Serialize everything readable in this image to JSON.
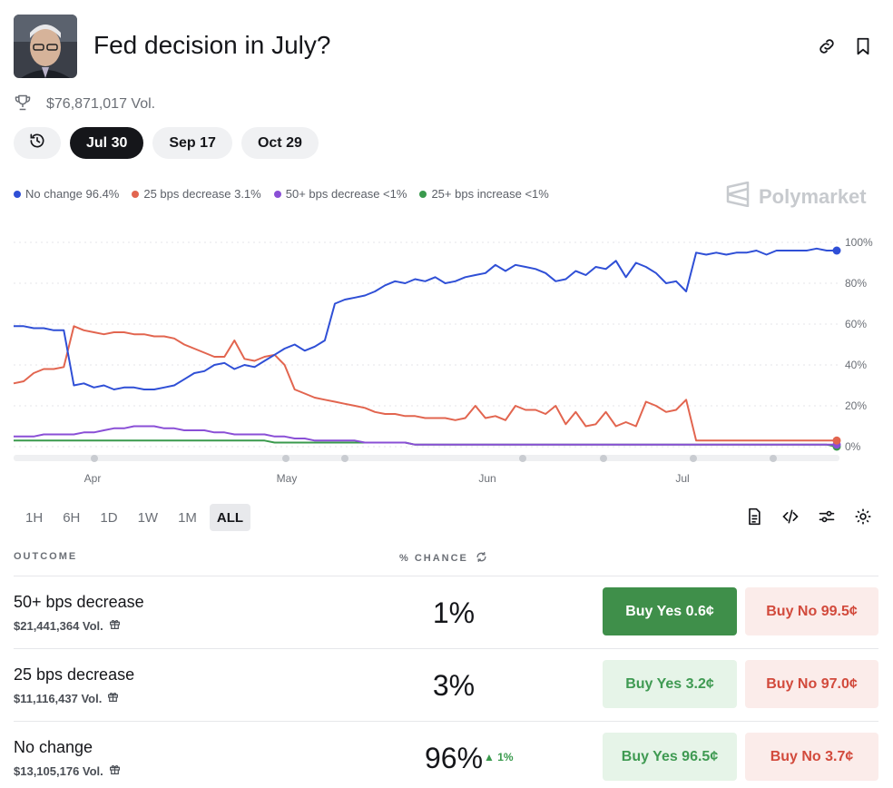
{
  "header": {
    "title": "Fed decision in July?",
    "link_icon": "link-icon",
    "bookmark_icon": "bookmark-icon"
  },
  "volume": {
    "icon": "trophy-icon",
    "text": "$76,871,017 Vol."
  },
  "date_chips": [
    {
      "label": "Jul 30",
      "active": true
    },
    {
      "label": "Sep 17",
      "active": false
    },
    {
      "label": "Oct 29",
      "active": false
    }
  ],
  "legend": [
    {
      "label": "No change 96.4%",
      "color": "#2f4fd6"
    },
    {
      "label": "25 bps decrease 3.1%",
      "color": "#e2654f"
    },
    {
      "label": "50+ bps decrease <1%",
      "color": "#8a4fd6"
    },
    {
      "label": "25+ bps increase <1%",
      "color": "#3a9a4d"
    }
  ],
  "brand": "Polymarket",
  "chart_data": {
    "type": "line",
    "x_ticks": [
      "Apr",
      "May",
      "Jun",
      "Jul"
    ],
    "y_ticks": [
      "100%",
      "80%",
      "60%",
      "40%",
      "20%",
      "0%"
    ],
    "ylim": [
      0,
      100
    ],
    "series": [
      {
        "name": "No change",
        "color": "#2f4fd6",
        "values": [
          59,
          59,
          58,
          58,
          57,
          57,
          30,
          31,
          29,
          30,
          28,
          29,
          29,
          28,
          28,
          29,
          30,
          33,
          36,
          37,
          40,
          41,
          38,
          40,
          39,
          42,
          45,
          48,
          50,
          47,
          49,
          52,
          70,
          72,
          73,
          74,
          76,
          79,
          81,
          80,
          82,
          81,
          83,
          80,
          81,
          83,
          84,
          85,
          89,
          86,
          89,
          88,
          87,
          85,
          81,
          82,
          86,
          84,
          88,
          87,
          91,
          83,
          90,
          88,
          85,
          80,
          81,
          76,
          95,
          94,
          95,
          94,
          95,
          95,
          96,
          94,
          96,
          96,
          96,
          96,
          97,
          96,
          96
        ]
      },
      {
        "name": "25 bps decrease",
        "color": "#e2654f",
        "values": [
          31,
          32,
          36,
          38,
          38,
          39,
          59,
          57,
          56,
          55,
          56,
          56,
          55,
          55,
          54,
          54,
          53,
          50,
          48,
          46,
          44,
          44,
          52,
          43,
          42,
          44,
          45,
          40,
          28,
          26,
          24,
          23,
          22,
          21,
          20,
          19,
          17,
          16,
          16,
          15,
          15,
          14,
          14,
          14,
          13,
          14,
          20,
          14,
          15,
          13,
          20,
          18,
          18,
          16,
          20,
          11,
          17,
          10,
          11,
          17,
          10,
          12,
          10,
          22,
          20,
          17,
          18,
          23,
          3,
          3,
          3,
          3,
          3,
          3,
          3,
          3,
          3,
          3,
          3,
          3,
          3,
          3,
          3
        ]
      },
      {
        "name": "50+ bps decrease",
        "color": "#8a4fd6",
        "values": [
          5,
          5,
          5,
          6,
          6,
          6,
          6,
          7,
          7,
          8,
          9,
          9,
          10,
          10,
          10,
          9,
          9,
          8,
          8,
          8,
          7,
          7,
          6,
          6,
          6,
          6,
          5,
          5,
          4,
          4,
          3,
          3,
          3,
          3,
          3,
          2,
          2,
          2,
          2,
          2,
          1,
          1,
          1,
          1,
          1,
          1,
          1,
          1,
          1,
          1,
          1,
          1,
          1,
          1,
          1,
          1,
          1,
          1,
          1,
          1,
          1,
          1,
          1,
          1,
          1,
          1,
          1,
          1,
          1,
          1,
          1,
          1,
          1,
          1,
          1,
          1,
          1,
          1,
          1,
          1,
          1,
          1,
          1
        ]
      },
      {
        "name": "25+ bps increase",
        "color": "#3a9a4d",
        "values": [
          3,
          3,
          3,
          3,
          3,
          3,
          3,
          3,
          3,
          3,
          3,
          3,
          3,
          3,
          3,
          3,
          3,
          3,
          3,
          3,
          3,
          3,
          3,
          3,
          3,
          3,
          2,
          2,
          2,
          2,
          2,
          2,
          2,
          2,
          2,
          2,
          2,
          2,
          2,
          2,
          1,
          1,
          1,
          1,
          1,
          1,
          1,
          1,
          1,
          1,
          1,
          1,
          1,
          1,
          1,
          1,
          1,
          1,
          1,
          1,
          1,
          1,
          1,
          1,
          1,
          1,
          1,
          1,
          1,
          1,
          1,
          1,
          1,
          1,
          1,
          1,
          1,
          1,
          1,
          1,
          1,
          1,
          0
        ]
      }
    ]
  },
  "ranges": [
    {
      "label": "1H",
      "active": false
    },
    {
      "label": "6H",
      "active": false
    },
    {
      "label": "1D",
      "active": false
    },
    {
      "label": "1W",
      "active": false
    },
    {
      "label": "1M",
      "active": false
    },
    {
      "label": "ALL",
      "active": true
    }
  ],
  "tools": [
    "document-icon",
    "embed-code-icon",
    "sliders-icon",
    "settings-gear-icon"
  ],
  "table": {
    "col_outcome": "OUTCOME",
    "col_chance": "% CHANCE",
    "rows": [
      {
        "name": "50+ bps decrease",
        "vol": "$21,441,364 Vol.",
        "chance": "1%",
        "delta": "",
        "yes": "Buy Yes 0.6¢",
        "no": "Buy No 99.5¢",
        "yes_solid": true
      },
      {
        "name": "25 bps decrease",
        "vol": "$11,116,437 Vol.",
        "chance": "3%",
        "delta": "",
        "yes": "Buy Yes 3.2¢",
        "no": "Buy No 97.0¢",
        "yes_solid": false
      },
      {
        "name": "No change",
        "vol": "$13,105,176 Vol.",
        "chance": "96%",
        "delta": "▲ 1%",
        "yes": "Buy Yes 96.5¢",
        "no": "Buy No 3.7¢",
        "yes_solid": false
      }
    ]
  }
}
